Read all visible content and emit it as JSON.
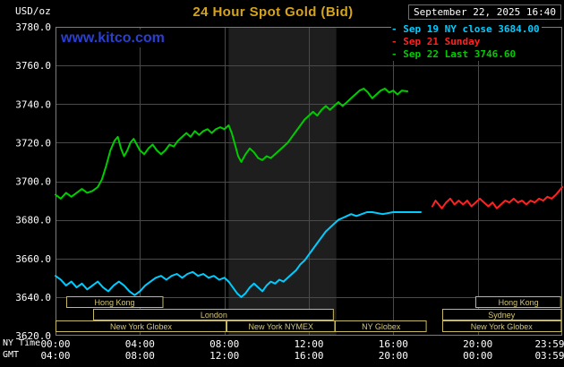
{
  "header": {
    "title": "24 Hour Spot Gold (Bid)",
    "title_color": "#d6a419",
    "datetime": "September 22, 2025 16:40",
    "watermark": "www.kitco.com",
    "watermark_color": "#2b3fd0",
    "legend": [
      {
        "marker": "-",
        "label": "Sep 19 NY close 3684.00",
        "color": "#00ccff"
      },
      {
        "marker": "-",
        "label": "Sep 21 Sunday",
        "color": "#ff2222"
      },
      {
        "marker": "-",
        "label": "Sep 22 Last 3746.60",
        "color": "#00cc00"
      }
    ]
  },
  "axes": {
    "unit": "USD/oz",
    "ny_time_label": "NY Time",
    "gmt_label": "GMT"
  },
  "chart_data": {
    "type": "line",
    "title": "24 Hour Spot Gold (Bid)",
    "xlabel": "NY Time",
    "ylabel": "USD/oz",
    "xlim": [
      0,
      24
    ],
    "ylim": [
      3620,
      3780
    ],
    "grid": true,
    "legend_position": "top-right",
    "yticks": [
      3620,
      3640,
      3660,
      3680,
      3700,
      3720,
      3740,
      3760,
      3780
    ],
    "xticks": [
      {
        "h": 0,
        "ny": "00:00",
        "gmt": "04:00"
      },
      {
        "h": 4,
        "ny": "04:00",
        "gmt": "08:00"
      },
      {
        "h": 8,
        "ny": "08:00",
        "gmt": "12:00"
      },
      {
        "h": 12,
        "ny": "12:00",
        "gmt": "16:00"
      },
      {
        "h": 16,
        "ny": "16:00",
        "gmt": "20:00"
      },
      {
        "h": 20,
        "ny": "20:00",
        "gmt": "00:00"
      },
      {
        "h": 24,
        "ny": "23:59",
        "gmt": "03:59"
      }
    ],
    "nymex_band": {
      "from": 8.2,
      "to": 13.3
    },
    "colors": {
      "grid": "#4a4a4a",
      "frame": "#7d7d7d",
      "band": "#1e1e1e",
      "session": "#c8b860",
      "session_text": "#d6c878",
      "tick_text": "#ffffff"
    },
    "sessions": [
      {
        "row": 0,
        "label": "Hong Kong",
        "from": 0.5,
        "to": 5.1
      },
      {
        "row": 0,
        "label": "Hong Kong",
        "from": 19.9,
        "to": 24
      },
      {
        "row": 1,
        "label": "London",
        "from": 1.8,
        "to": 13.2
      },
      {
        "row": 1,
        "label": "Sydney",
        "from": 18.3,
        "to": 24
      },
      {
        "row": 2,
        "label": "New York Globex",
        "from": 0,
        "to": 8.1
      },
      {
        "row": 2,
        "label": "New York NYMEX",
        "from": 8.1,
        "to": 13.25
      },
      {
        "row": 2,
        "label": "NY Globex",
        "from": 13.25,
        "to": 17.6
      },
      {
        "row": 2,
        "label": "New York Globex",
        "from": 18.3,
        "to": 24
      }
    ],
    "series": [
      {
        "name": "Sep 19 NY close",
        "color": "#00ccff",
        "close_value": 3684.0,
        "points": [
          [
            0,
            3651
          ],
          [
            0.25,
            3649
          ],
          [
            0.5,
            3646
          ],
          [
            0.75,
            3648
          ],
          [
            1,
            3645
          ],
          [
            1.25,
            3647
          ],
          [
            1.5,
            3644
          ],
          [
            1.75,
            3646
          ],
          [
            2,
            3648
          ],
          [
            2.25,
            3645
          ],
          [
            2.5,
            3643
          ],
          [
            2.75,
            3646
          ],
          [
            3,
            3648
          ],
          [
            3.25,
            3646
          ],
          [
            3.5,
            3643
          ],
          [
            3.75,
            3641
          ],
          [
            4,
            3643
          ],
          [
            4.25,
            3646
          ],
          [
            4.5,
            3648
          ],
          [
            4.75,
            3650
          ],
          [
            5,
            3651
          ],
          [
            5.25,
            3649
          ],
          [
            5.5,
            3651
          ],
          [
            5.75,
            3652
          ],
          [
            6,
            3650
          ],
          [
            6.25,
            3652
          ],
          [
            6.5,
            3653
          ],
          [
            6.75,
            3651
          ],
          [
            7,
            3652
          ],
          [
            7.25,
            3650
          ],
          [
            7.5,
            3651
          ],
          [
            7.75,
            3649
          ],
          [
            8,
            3650
          ],
          [
            8.2,
            3648
          ],
          [
            8.4,
            3645
          ],
          [
            8.6,
            3642
          ],
          [
            8.8,
            3640
          ],
          [
            9,
            3642
          ],
          [
            9.2,
            3645
          ],
          [
            9.4,
            3647
          ],
          [
            9.6,
            3645
          ],
          [
            9.8,
            3643
          ],
          [
            10,
            3646
          ],
          [
            10.2,
            3648
          ],
          [
            10.4,
            3647
          ],
          [
            10.6,
            3649
          ],
          [
            10.8,
            3648
          ],
          [
            11,
            3650
          ],
          [
            11.2,
            3652
          ],
          [
            11.4,
            3654
          ],
          [
            11.6,
            3657
          ],
          [
            11.8,
            3659
          ],
          [
            12,
            3662
          ],
          [
            12.2,
            3665
          ],
          [
            12.4,
            3668
          ],
          [
            12.6,
            3671
          ],
          [
            12.8,
            3674
          ],
          [
            13,
            3676
          ],
          [
            13.2,
            3678
          ],
          [
            13.4,
            3680
          ],
          [
            13.6,
            3681
          ],
          [
            13.8,
            3682
          ],
          [
            14,
            3683
          ],
          [
            14.25,
            3682
          ],
          [
            14.5,
            3683
          ],
          [
            14.75,
            3684
          ],
          [
            15,
            3684
          ],
          [
            15.5,
            3683
          ],
          [
            16,
            3684
          ],
          [
            16.5,
            3684
          ],
          [
            17,
            3684
          ],
          [
            17.3,
            3684
          ]
        ]
      },
      {
        "name": "Sep 21 Sunday",
        "color": "#ff2222",
        "points": [
          [
            17.85,
            3687
          ],
          [
            18,
            3690
          ],
          [
            18.15,
            3688
          ],
          [
            18.3,
            3686
          ],
          [
            18.5,
            3689
          ],
          [
            18.7,
            3691
          ],
          [
            18.9,
            3688
          ],
          [
            19.1,
            3690
          ],
          [
            19.3,
            3688
          ],
          [
            19.5,
            3690
          ],
          [
            19.7,
            3687
          ],
          [
            19.9,
            3689
          ],
          [
            20.1,
            3691
          ],
          [
            20.3,
            3689
          ],
          [
            20.5,
            3687
          ],
          [
            20.7,
            3689
          ],
          [
            20.9,
            3686
          ],
          [
            21.1,
            3688
          ],
          [
            21.3,
            3690
          ],
          [
            21.5,
            3689
          ],
          [
            21.7,
            3691
          ],
          [
            21.9,
            3689
          ],
          [
            22.1,
            3690
          ],
          [
            22.3,
            3688
          ],
          [
            22.5,
            3690
          ],
          [
            22.7,
            3689
          ],
          [
            22.9,
            3691
          ],
          [
            23.1,
            3690
          ],
          [
            23.3,
            3692
          ],
          [
            23.5,
            3691
          ],
          [
            23.7,
            3693
          ],
          [
            23.85,
            3695
          ],
          [
            24,
            3697
          ]
        ]
      },
      {
        "name": "Sep 22",
        "color": "#00cc00",
        "last_value": 3746.6,
        "points": [
          [
            0,
            3693
          ],
          [
            0.25,
            3691
          ],
          [
            0.5,
            3694
          ],
          [
            0.75,
            3692
          ],
          [
            1,
            3694
          ],
          [
            1.25,
            3696
          ],
          [
            1.5,
            3694
          ],
          [
            1.75,
            3695
          ],
          [
            2,
            3697
          ],
          [
            2.2,
            3701
          ],
          [
            2.4,
            3708
          ],
          [
            2.6,
            3716
          ],
          [
            2.8,
            3721
          ],
          [
            2.95,
            3723
          ],
          [
            3.1,
            3717
          ],
          [
            3.25,
            3713
          ],
          [
            3.4,
            3716
          ],
          [
            3.55,
            3720
          ],
          [
            3.7,
            3722
          ],
          [
            3.85,
            3719
          ],
          [
            4,
            3716
          ],
          [
            4.2,
            3714
          ],
          [
            4.4,
            3717
          ],
          [
            4.6,
            3719
          ],
          [
            4.8,
            3716
          ],
          [
            5,
            3714
          ],
          [
            5.2,
            3716
          ],
          [
            5.4,
            3719
          ],
          [
            5.6,
            3718
          ],
          [
            5.8,
            3721
          ],
          [
            6,
            3723
          ],
          [
            6.2,
            3725
          ],
          [
            6.4,
            3723
          ],
          [
            6.6,
            3726
          ],
          [
            6.8,
            3724
          ],
          [
            7,
            3726
          ],
          [
            7.2,
            3727
          ],
          [
            7.4,
            3725
          ],
          [
            7.6,
            3727
          ],
          [
            7.8,
            3728
          ],
          [
            8,
            3727
          ],
          [
            8.2,
            3729
          ],
          [
            8.35,
            3725
          ],
          [
            8.5,
            3719
          ],
          [
            8.65,
            3713
          ],
          [
            8.8,
            3710
          ],
          [
            9,
            3714
          ],
          [
            9.2,
            3717
          ],
          [
            9.4,
            3715
          ],
          [
            9.6,
            3712
          ],
          [
            9.8,
            3711
          ],
          [
            10,
            3713
          ],
          [
            10.2,
            3712
          ],
          [
            10.4,
            3714
          ],
          [
            10.6,
            3716
          ],
          [
            10.8,
            3718
          ],
          [
            11,
            3720
          ],
          [
            11.2,
            3723
          ],
          [
            11.4,
            3726
          ],
          [
            11.6,
            3729
          ],
          [
            11.8,
            3732
          ],
          [
            12,
            3734
          ],
          [
            12.2,
            3736
          ],
          [
            12.4,
            3734
          ],
          [
            12.6,
            3737
          ],
          [
            12.8,
            3739
          ],
          [
            13,
            3737
          ],
          [
            13.2,
            3739
          ],
          [
            13.4,
            3741
          ],
          [
            13.6,
            3739
          ],
          [
            13.8,
            3741
          ],
          [
            14,
            3743
          ],
          [
            14.2,
            3745
          ],
          [
            14.4,
            3747
          ],
          [
            14.6,
            3748
          ],
          [
            14.8,
            3746
          ],
          [
            15,
            3743
          ],
          [
            15.2,
            3745
          ],
          [
            15.4,
            3747
          ],
          [
            15.6,
            3748
          ],
          [
            15.8,
            3746
          ],
          [
            16,
            3747
          ],
          [
            16.2,
            3745
          ],
          [
            16.4,
            3747
          ],
          [
            16.67,
            3746.6
          ]
        ]
      }
    ]
  }
}
